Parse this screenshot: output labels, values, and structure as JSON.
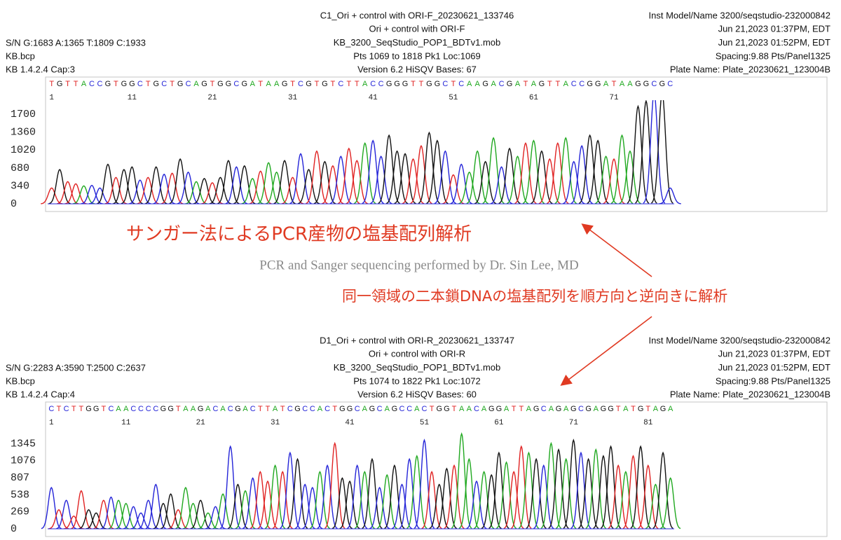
{
  "annotations": {
    "main": "サンガー法によるPCR産物の塩基配列解析",
    "credit": "PCR and Sanger sequencing performed by Dr. Sin Lee, MD",
    "note": "同一領域の二本鎖DNAの塩基配列を順方向と逆向きに解析"
  },
  "chart_data": [
    {
      "type": "chromatogram",
      "header": {
        "left": [
          "S/N G:1683 A:1365 T:1809 C:1933",
          "KB.bcp",
          "KB 1.4.2.4    Cap:3"
        ],
        "center": [
          "C1_Ori + control with ORI-F_20230621_133746",
          "Ori + control with ORI-F",
          "KB_3200_SeqStudio_POP1_BDTv1.mob",
          "Pts 1069 to 1818 Pk1 Loc:1069",
          "Version 6.2    HiSQV Bases: 67"
        ],
        "right": [
          "Inst Model/Name 3200/seqstudio-232000842",
          "Jun 21,2023 01:37PM, EDT",
          "Jun 21,2023 01:52PM, EDT",
          "Spacing:9.88  Pts/Panel1325",
          "Plate Name: Plate_20230621_123004B"
        ]
      },
      "categories": [
        "T",
        "G",
        "T",
        "T",
        "A",
        "C",
        "C",
        "G",
        "T",
        "G",
        "G",
        "C",
        "T",
        "G",
        "C",
        "T",
        "G",
        "C",
        "A",
        "G",
        "T",
        "G",
        "G",
        "C",
        "G",
        "A",
        "T",
        "A",
        "A",
        "G",
        "T",
        "C",
        "G",
        "T",
        "G",
        "T",
        "C",
        "T",
        "T",
        "A",
        "C",
        "C",
        "G",
        "G",
        "G",
        "T",
        "T",
        "G",
        "G",
        "C",
        "T",
        "C",
        "A",
        "A",
        "G",
        "A",
        "C",
        "G",
        "A",
        "T",
        "A",
        "G",
        "T",
        "T",
        "A",
        "C",
        "C",
        "G",
        "G",
        "A",
        "T",
        "A",
        "A",
        "G",
        "G",
        "C",
        "G",
        "C"
      ],
      "values": [
        300,
        650,
        420,
        380,
        340,
        350,
        300,
        750,
        500,
        650,
        700,
        450,
        500,
        700,
        560,
        580,
        850,
        600,
        420,
        480,
        400,
        500,
        820,
        700,
        720,
        480,
        620,
        780,
        600,
        820,
        500,
        950,
        650,
        1000,
        800,
        720,
        900,
        1050,
        820,
        1150,
        1200,
        900,
        1300,
        1000,
        950,
        850,
        1100,
        1350,
        1200,
        1000,
        550,
        750,
        600,
        1000,
        800,
        1250,
        700,
        1050,
        900,
        1150,
        1200,
        1000,
        850,
        1150,
        1250,
        800,
        1100,
        1300,
        1200,
        900,
        850,
        1300,
        1000,
        1850,
        1950,
        2100,
        2100,
        300
      ],
      "xticks": [
        1,
        11,
        21,
        31,
        41,
        51,
        61,
        71
      ],
      "ylim": [
        0,
        1940
      ],
      "yticks": [
        0,
        340,
        680,
        1020,
        1360,
        1700
      ],
      "base_colors": {
        "A": "#1fa81f",
        "C": "#2424d8",
        "G": "#111111",
        "T": "#e02222"
      }
    },
    {
      "type": "chromatogram",
      "header": {
        "left": [
          "S/N G:2283 A:3590 T:2500 C:2637",
          "KB.bcp",
          "KB 1.4.2.4    Cap:4"
        ],
        "center": [
          "D1_Ori + control with ORI-R_20230621_133747",
          "Ori + control with ORI-R",
          "KB_3200_SeqStudio_POP1_BDTv1.mob",
          "Pts 1074 to 1822 Pk1 Loc:1072",
          "Version 6.2    HiSQV Bases: 60"
        ],
        "right": [
          "Inst Model/Name 3200/seqstudio-232000842",
          "Jun 21,2023 01:37PM, EDT",
          "Jun 21,2023 01:52PM, EDT",
          "Spacing:9.88  Pts/Panel1325",
          "Plate Name: Plate_20230621_123004B"
        ]
      },
      "categories": [
        "C",
        "T",
        "C",
        "T",
        "T",
        "G",
        "G",
        "T",
        "C",
        "A",
        "A",
        "C",
        "C",
        "C",
        "C",
        "G",
        "G",
        "T",
        "A",
        "A",
        "G",
        "A",
        "C",
        "A",
        "C",
        "G",
        "A",
        "C",
        "T",
        "T",
        "A",
        "T",
        "C",
        "G",
        "C",
        "C",
        "A",
        "C",
        "T",
        "G",
        "G",
        "C",
        "A",
        "G",
        "C",
        "A",
        "G",
        "C",
        "C",
        "A",
        "C",
        "T",
        "G",
        "G",
        "T",
        "A",
        "A",
        "C",
        "A",
        "G",
        "G",
        "A",
        "T",
        "T",
        "A",
        "G",
        "C",
        "A",
        "G",
        "A",
        "G",
        "C",
        "G",
        "A",
        "G",
        "G",
        "T",
        "A",
        "T",
        "G",
        "T",
        "A",
        "G",
        "A"
      ],
      "values": [
        650,
        300,
        450,
        200,
        600,
        300,
        250,
        450,
        500,
        450,
        400,
        350,
        250,
        450,
        700,
        400,
        550,
        300,
        650,
        400,
        450,
        250,
        350,
        550,
        1300,
        700,
        600,
        800,
        900,
        750,
        1000,
        900,
        1200,
        1100,
        700,
        650,
        900,
        1000,
        1350,
        800,
        750,
        1000,
        900,
        1100,
        650,
        850,
        1000,
        700,
        1100,
        1150,
        1400,
        900,
        700,
        950,
        1000,
        1500,
        1100,
        750,
        900,
        850,
        1200,
        1050,
        900,
        1300,
        1200,
        1100,
        1000,
        1350,
        1250,
        1100,
        1400,
        1200,
        1100,
        1250,
        1150,
        1300,
        1000,
        900,
        1150,
        1300,
        1000,
        700,
        1200,
        800
      ],
      "xticks": [
        1,
        11,
        21,
        31,
        41,
        51,
        61,
        71,
        81
      ],
      "ylim": [
        0,
        1614
      ],
      "yticks": [
        0,
        269,
        538,
        807,
        1076,
        1345
      ],
      "base_colors": {
        "A": "#1fa81f",
        "C": "#2424d8",
        "G": "#111111",
        "T": "#e02222"
      }
    }
  ]
}
